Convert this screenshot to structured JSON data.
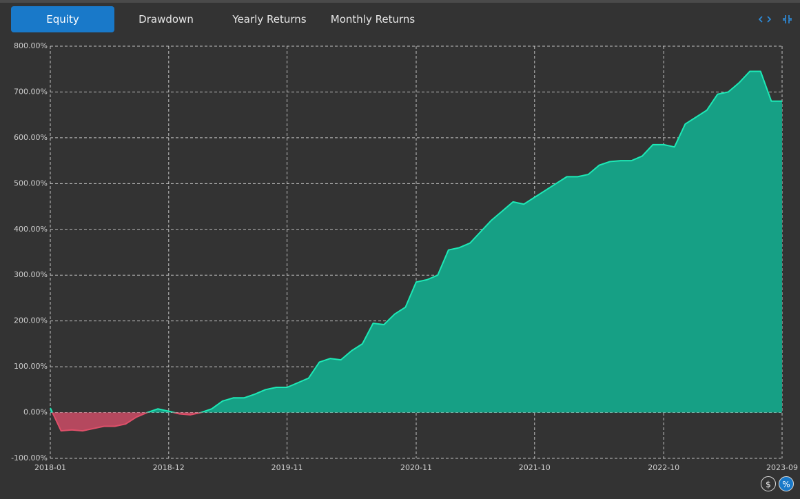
{
  "tabs": [
    "Equity",
    "Drawdown",
    "Yearly Returns",
    "Monthly Returns"
  ],
  "active_tab": 0,
  "unit_toggles": [
    "$",
    "%"
  ],
  "chart_data": {
    "type": "area",
    "categories": [
      "2018-01",
      null,
      null,
      null,
      null,
      null,
      null,
      null,
      null,
      null,
      null,
      "2018-12",
      null,
      null,
      null,
      null,
      null,
      null,
      null,
      null,
      null,
      null,
      "2019-11",
      null,
      null,
      null,
      null,
      null,
      null,
      null,
      null,
      null,
      null,
      null,
      "2020-11",
      null,
      null,
      null,
      null,
      null,
      null,
      null,
      null,
      null,
      null,
      "2021-10",
      null,
      null,
      null,
      null,
      null,
      null,
      null,
      null,
      null,
      null,
      null,
      "2022-10",
      null,
      null,
      null,
      null,
      null,
      null,
      null,
      null,
      null,
      null,
      "2023-09"
    ],
    "values": [
      10,
      -40,
      -38,
      -40,
      -35,
      -30,
      -30,
      -25,
      -10,
      0,
      8,
      3,
      -3,
      -5,
      0,
      8,
      25,
      32,
      32,
      40,
      50,
      55,
      55,
      65,
      75,
      110,
      118,
      115,
      135,
      150,
      195,
      192,
      215,
      230,
      285,
      290,
      300,
      355,
      360,
      370,
      395,
      420,
      440,
      460,
      455,
      470,
      485,
      500,
      515,
      515,
      520,
      540,
      548,
      550,
      550,
      560,
      585,
      585,
      580,
      630,
      645,
      660,
      695,
      700,
      720,
      745,
      745,
      680,
      680
    ],
    "color": "#1de9b6",
    "fill": "#16a085",
    "negative_color": "#e0506a",
    "negative_fill": "#b5485e",
    "ylim": [
      -100,
      800
    ],
    "yticks": [
      {
        "value": -100,
        "label": "-100.00%"
      },
      {
        "value": 0,
        "label": "0.00%"
      },
      {
        "value": 100,
        "label": "100.00%"
      },
      {
        "value": 200,
        "label": "200.00%"
      },
      {
        "value": 300,
        "label": "300.00%"
      },
      {
        "value": 400,
        "label": "400.00%"
      },
      {
        "value": 500,
        "label": "500.00%"
      },
      {
        "value": 600,
        "label": "600.00%"
      },
      {
        "value": 700,
        "label": "700.00%"
      },
      {
        "value": 800,
        "label": "800.00%"
      }
    ],
    "grid": true
  }
}
